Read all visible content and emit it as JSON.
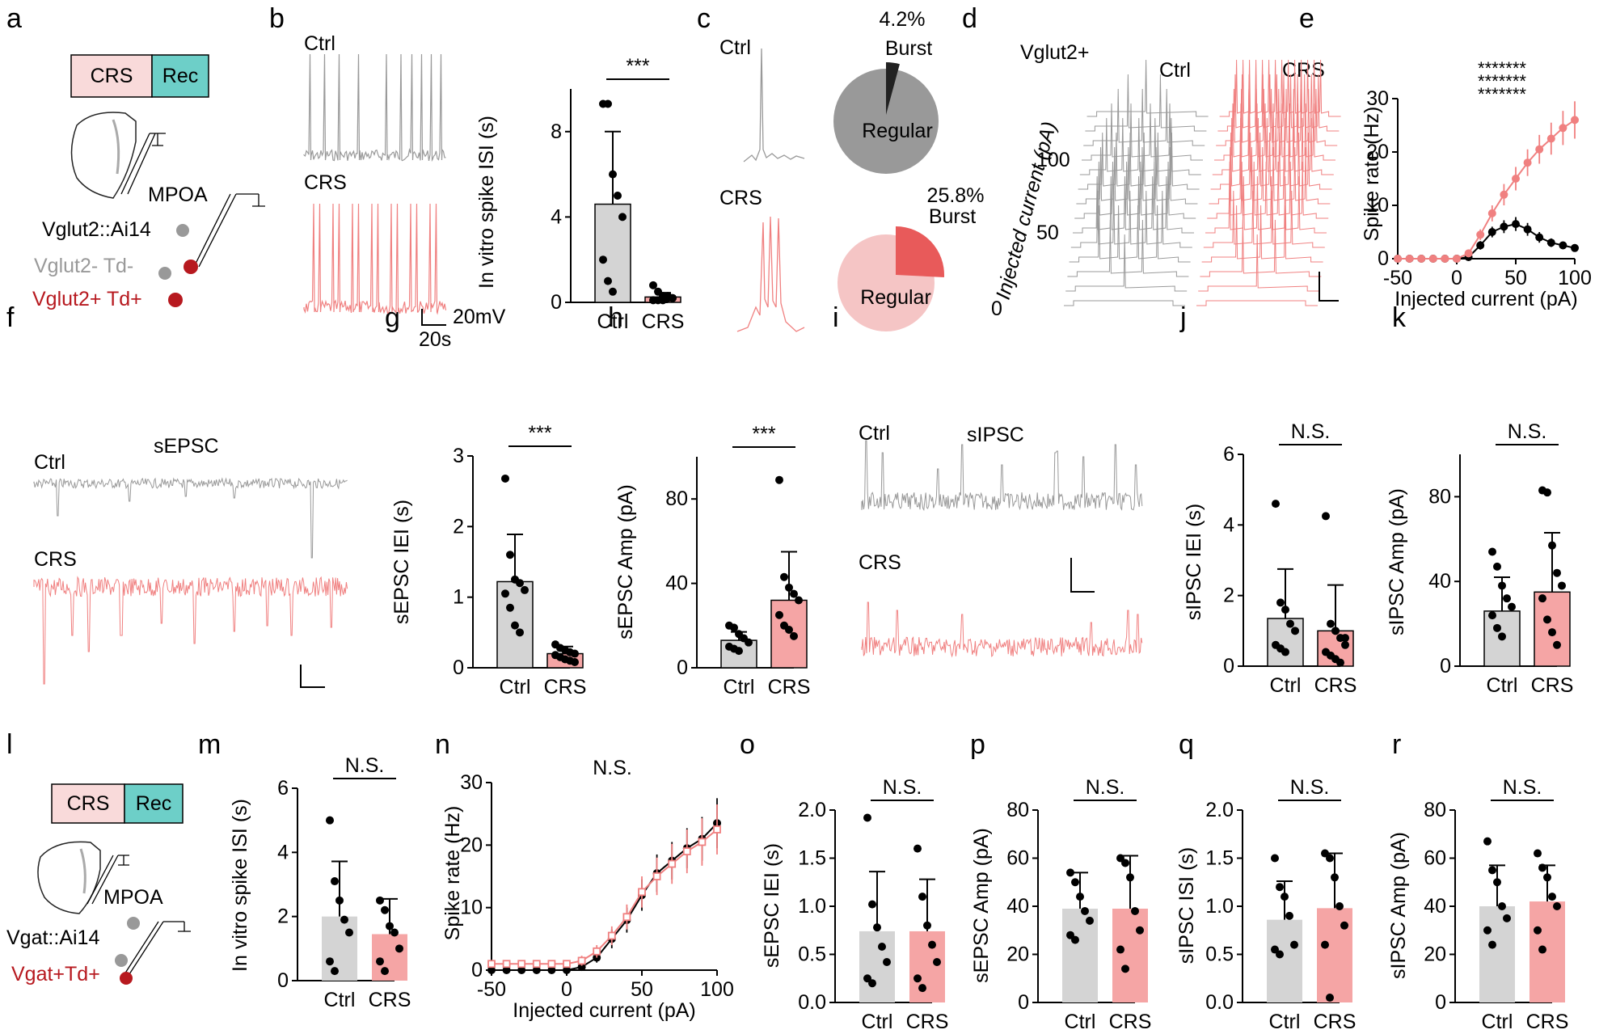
{
  "figure": {
    "colors": {
      "ctrl": "#999999",
      "crs": "#f08080",
      "crs_bar": "#f5a5a5",
      "ctrl_bar": "#d4d4d4",
      "crs_box": "#f9dada",
      "rec_box": "#6dcfc8",
      "red": "#b7191f",
      "grey_cell": "#999999"
    },
    "panels": [
      "a",
      "b",
      "c",
      "d",
      "e",
      "f",
      "g",
      "h",
      "i",
      "j",
      "k",
      "l",
      "m",
      "n",
      "o",
      "p",
      "q",
      "r"
    ]
  },
  "a": {
    "crs": "CRS",
    "rec": "Rec",
    "region": "MPOA",
    "line1": "Vglut2::Ai14",
    "line2": "Vglut2- Td-",
    "line3": "Vglut2+ Td+"
  },
  "b": {
    "ctrl": "Ctrl",
    "crs": "CRS",
    "scale_v": "20mV",
    "scale_t": "20s"
  },
  "c": {
    "ctrl": "Ctrl",
    "crs": "CRS",
    "ctrl_burst_pct": "4.2%",
    "burst": "Burst",
    "regular": "Regular",
    "crs_burst_pct": "25.8%",
    "ctrl_burst_value": 4.2,
    "crs_burst_value": 25.8
  },
  "d": {
    "title": "Vglut2+",
    "ctrl": "Ctrl",
    "crs": "CRS",
    "axis": "Injected current (pA)",
    "ticks": [
      "100",
      "50",
      "0"
    ]
  },
  "l": {
    "crs": "CRS",
    "rec": "Rec",
    "region": "MPOA",
    "line1": "Vgat::Ai14",
    "line2": "Vgat+Td+"
  },
  "f": {
    "title": "sEPSC",
    "ctrl": "Ctrl",
    "crs": "CRS"
  },
  "i": {
    "title": "sIPSC",
    "ctrl": "Ctrl",
    "crs": "CRS"
  },
  "chart_data": [
    {
      "id": "b",
      "type": "bar",
      "ylabel": "In vitro spike ISI (s)",
      "ylim": [
        0,
        10
      ],
      "yticks": [
        "0",
        "4",
        "8"
      ],
      "categories": [
        "Ctrl",
        "CRS"
      ],
      "values": [
        4.6,
        0.25
      ],
      "err": [
        3.4,
        0.2
      ],
      "sig": "***",
      "points": [
        [
          9.3,
          9.3,
          6.0,
          5.0,
          4.0,
          2.0,
          1.0,
          0.5
        ],
        [
          0.8,
          0.5,
          0.3,
          0.2,
          0.2,
          0.1,
          0.1,
          0.1,
          0.3,
          0.2
        ]
      ]
    },
    {
      "id": "g",
      "type": "bar",
      "ylabel": "sEPSC IEI (s)",
      "ylim": [
        0,
        3
      ],
      "yticks": [
        "0",
        "1",
        "2",
        "3"
      ],
      "categories": [
        "Ctrl",
        "CRS"
      ],
      "values": [
        1.22,
        0.2
      ],
      "err": [
        0.67,
        0.1
      ],
      "sig": "***",
      "points": [
        [
          2.68,
          1.6,
          1.25,
          1.2,
          1.1,
          1.05,
          0.85,
          0.6,
          0.5
        ],
        [
          0.33,
          0.28,
          0.25,
          0.22,
          0.2,
          0.18,
          0.15,
          0.12,
          0.1,
          0.08
        ]
      ]
    },
    {
      "id": "h",
      "type": "bar",
      "ylabel": "sEPSC Amp (pA)",
      "ylim": [
        0,
        100
      ],
      "yticks": [
        "0",
        "40",
        "80"
      ],
      "categories": [
        "Ctrl",
        "CRS"
      ],
      "values": [
        13,
        32
      ],
      "err": [
        4,
        23
      ],
      "sig": "***",
      "points": [
        [
          20,
          19,
          16,
          14,
          12,
          10,
          9,
          8
        ],
        [
          89,
          43,
          38,
          35,
          32,
          25,
          20,
          18,
          15
        ]
      ]
    },
    {
      "id": "j",
      "type": "bar",
      "ylabel": "sIPSC IEI (s)",
      "ylim": [
        0,
        6
      ],
      "yticks": [
        "0",
        "2",
        "4",
        "6"
      ],
      "categories": [
        "Ctrl",
        "CRS"
      ],
      "values": [
        1.35,
        1.0
      ],
      "err": [
        1.4,
        1.3
      ],
      "sig": "N.S.",
      "points": [
        [
          4.6,
          1.8,
          1.6,
          1.2,
          1.0,
          0.6,
          0.5,
          0.4
        ],
        [
          4.25,
          1.2,
          1.0,
          0.8,
          0.6,
          0.4,
          0.3,
          0.2,
          0.1,
          0.8
        ]
      ]
    },
    {
      "id": "k",
      "type": "bar",
      "ylabel": "sIPSC Amp (pA)",
      "ylim": [
        0,
        100
      ],
      "yticks": [
        "0",
        "40",
        "80"
      ],
      "categories": [
        "Ctrl",
        "CRS"
      ],
      "values": [
        26,
        35
      ],
      "err": [
        16,
        28
      ],
      "sig": "N.S.",
      "points": [
        [
          54,
          47,
          38,
          32,
          28,
          24,
          18,
          14
        ],
        [
          83,
          82,
          57,
          44,
          38,
          32,
          22,
          16,
          10
        ]
      ]
    },
    {
      "id": "m",
      "type": "bar",
      "ylabel": "In vitro spike ISI (s)",
      "ylim": [
        0,
        6
      ],
      "yticks": [
        "0",
        "2",
        "4",
        "6"
      ],
      "categories": [
        "Ctrl",
        "CRS"
      ],
      "values": [
        2.0,
        1.45
      ],
      "err": [
        1.72,
        1.1
      ],
      "sig": "N.S.",
      "points": [
        [
          5.0,
          3.1,
          2.5,
          1.9,
          1.5,
          0.6,
          0.3
        ],
        [
          2.5,
          2.2,
          1.7,
          1.5,
          1.0,
          0.6,
          0.3
        ]
      ]
    },
    {
      "id": "o",
      "type": "bar",
      "ylabel": "sEPSC IEI (s)",
      "ylim": [
        0,
        2.0
      ],
      "yticks": [
        "0.0",
        "0.5",
        "1.0",
        "1.5",
        "2.0"
      ],
      "categories": [
        "Ctrl",
        "CRS"
      ],
      "values": [
        0.74,
        0.74
      ],
      "err": [
        0.62,
        0.54
      ],
      "sig": "N.S.",
      "points": [
        [
          1.92,
          1.02,
          0.78,
          0.58,
          0.42,
          0.25,
          0.2
        ],
        [
          1.6,
          1.1,
          0.8,
          0.6,
          0.42,
          0.25,
          0.15
        ]
      ]
    },
    {
      "id": "p",
      "type": "bar",
      "ylabel": "sEPSC Amp (pA)",
      "ylim": [
        0,
        80
      ],
      "yticks": [
        "0",
        "20",
        "40",
        "60",
        "80"
      ],
      "categories": [
        "Ctrl",
        "CRS"
      ],
      "values": [
        39,
        39
      ],
      "err": [
        15,
        22
      ],
      "sig": "N.S.",
      "points": [
        [
          54,
          50,
          44,
          38,
          34,
          28,
          26
        ],
        [
          60,
          58,
          52,
          38,
          30,
          22,
          14
        ]
      ]
    },
    {
      "id": "q",
      "type": "bar",
      "ylabel": "sIPSC ISI (s)",
      "ylim": [
        0,
        2.0
      ],
      "yticks": [
        "0.0",
        "0.5",
        "1.0",
        "1.5",
        "2.0"
      ],
      "categories": [
        "Ctrl",
        "CRS"
      ],
      "values": [
        0.86,
        0.98
      ],
      "err": [
        0.4,
        0.57
      ],
      "sig": "N.S.",
      "points": [
        [
          1.5,
          1.2,
          1.1,
          0.9,
          0.6,
          0.55,
          0.5
        ],
        [
          1.55,
          1.5,
          1.3,
          1.0,
          0.8,
          0.6,
          0.05
        ]
      ]
    },
    {
      "id": "r",
      "type": "bar",
      "ylabel": "sIPSC Amp (pA)",
      "ylim": [
        0,
        80
      ],
      "yticks": [
        "0",
        "20",
        "40",
        "60",
        "80"
      ],
      "categories": [
        "Ctrl",
        "CRS"
      ],
      "values": [
        40,
        42
      ],
      "err": [
        17,
        15
      ],
      "sig": "N.S.",
      "points": [
        [
          67,
          55,
          50,
          40,
          35,
          30,
          24
        ],
        [
          62,
          56,
          52,
          44,
          40,
          30,
          22
        ]
      ]
    },
    {
      "id": "e",
      "type": "line",
      "xlabel": "Injected current (pA)",
      "ylabel": "Spike rate (Hz)",
      "xlim": [
        -50,
        100
      ],
      "ylim": [
        0,
        30
      ],
      "xticks": [
        "-50",
        "0",
        "50",
        "100"
      ],
      "yticks": [
        "0",
        "10",
        "20",
        "30"
      ],
      "sig_rows": [
        "*******",
        "*******",
        "*******"
      ],
      "x": [
        -50,
        -40,
        -30,
        -20,
        -10,
        0,
        10,
        20,
        30,
        40,
        50,
        60,
        70,
        80,
        90,
        100
      ],
      "series": [
        {
          "name": "Ctrl",
          "values": [
            0,
            0,
            0,
            0,
            0,
            0,
            0.3,
            2.5,
            5.0,
            6.0,
            6.5,
            5.5,
            4.0,
            3.0,
            2.5,
            2.0
          ],
          "err": [
            0,
            0,
            0,
            0,
            0,
            0,
            0.3,
            0.8,
            1.0,
            1.2,
            1.3,
            1.2,
            1.0,
            0.8,
            0.6,
            0.5
          ]
        },
        {
          "name": "CRS",
          "values": [
            0,
            0,
            0,
            0,
            0,
            0,
            1.0,
            4.5,
            8.5,
            12.0,
            15.0,
            18.0,
            20.5,
            22.5,
            24.5,
            26.0
          ],
          "err": [
            0,
            0,
            0,
            0,
            0,
            0,
            0.5,
            1.0,
            1.5,
            2.0,
            2.2,
            2.5,
            2.7,
            3.0,
            3.2,
            3.5
          ]
        }
      ]
    },
    {
      "id": "n",
      "type": "line",
      "xlabel": "Injected current (pA)",
      "ylabel": "Spike rate (Hz)",
      "xlim": [
        -50,
        100
      ],
      "ylim": [
        0,
        30
      ],
      "xticks": [
        "-50",
        "0",
        "50",
        "100"
      ],
      "yticks": [
        "0",
        "10",
        "20",
        "30"
      ],
      "sig": "N.S.",
      "x": [
        -50,
        -40,
        -30,
        -20,
        -10,
        0,
        10,
        20,
        30,
        40,
        50,
        60,
        70,
        80,
        90,
        100
      ],
      "series": [
        {
          "name": "Ctrl",
          "values": [
            0,
            0,
            0,
            0,
            0,
            0,
            0.5,
            2.0,
            5.0,
            8.0,
            12.0,
            15.5,
            17.5,
            19.5,
            21.0,
            23.5
          ],
          "err": [
            0,
            0,
            0,
            0,
            0,
            0,
            0.3,
            0.8,
            1.5,
            2.0,
            2.5,
            3.0,
            3.0,
            3.2,
            3.5,
            4.0
          ]
        },
        {
          "name": "CRS",
          "values": [
            1,
            1,
            1,
            1,
            1,
            1,
            1.5,
            3.0,
            5.5,
            8.5,
            12.5,
            15.0,
            17.0,
            19.0,
            20.5,
            22.5
          ],
          "err": [
            0.5,
            0.5,
            0.5,
            0.5,
            0.5,
            0.5,
            0.8,
            1.0,
            1.5,
            2.0,
            2.5,
            3.0,
            3.2,
            3.5,
            3.8,
            4.0
          ]
        }
      ]
    }
  ]
}
